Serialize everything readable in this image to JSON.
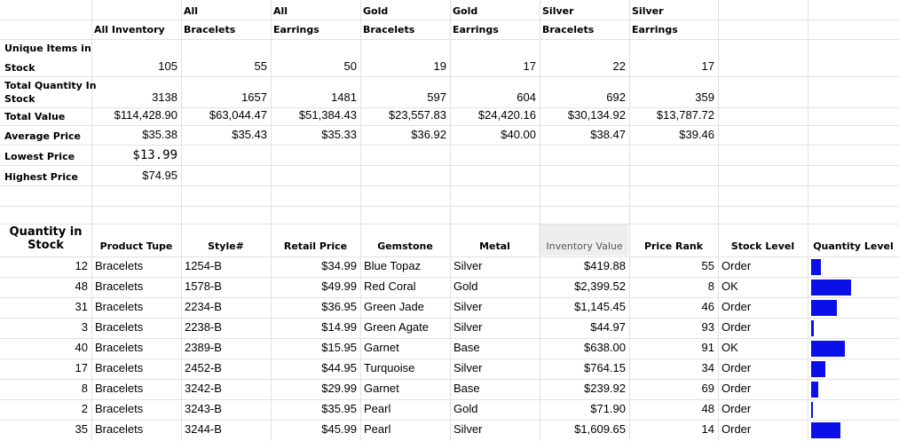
{
  "summary": {
    "headers": [
      {
        "line1": "",
        "line2": "All Inventory"
      },
      {
        "line1": "All",
        "line2": "Bracelets"
      },
      {
        "line1": "All",
        "line2": "Earrings"
      },
      {
        "line1": "Gold",
        "line2": "Bracelets"
      },
      {
        "line1": "Gold",
        "line2": "Earrings"
      },
      {
        "line1": "Silver",
        "line2": "Bracelets"
      },
      {
        "line1": "Silver",
        "line2": "Earrings"
      }
    ],
    "rows": [
      {
        "label_line1": "Unique Items in",
        "label_line2": "Stock",
        "values": [
          "105",
          "55",
          "50",
          "19",
          "17",
          "22",
          "17"
        ]
      },
      {
        "label_line1": "Total Quantity In",
        "label_line2": "Stock",
        "values": [
          "3138",
          "1657",
          "1481",
          "597",
          "604",
          "692",
          "359"
        ]
      },
      {
        "label_line1": "Total Value",
        "label_line2": "",
        "values": [
          "$114,428.90",
          "$63,044.47",
          "$51,384.43",
          "$23,557.83",
          "$24,420.16",
          "$30,134.92",
          "$13,787.72"
        ]
      },
      {
        "label_line1": "Average Price",
        "label_line2": "",
        "values": [
          "$35.38",
          "$35.43",
          "$35.33",
          "$36.92",
          "$40.00",
          "$38.47",
          "$39.46"
        ]
      },
      {
        "label_line1": "Lowest Price",
        "label_line2": "",
        "values": [
          "$13.99"
        ]
      },
      {
        "label_line1": "Highest Price",
        "label_line2": "",
        "values": [
          "$74.95"
        ]
      }
    ]
  },
  "table": {
    "headers": {
      "quantity_line1": "Quantity in",
      "quantity_line2": "Stock",
      "product_type": "Product Tupe",
      "style": "Style#",
      "retail_price": "Retail Price",
      "gemstone": "Gemstone",
      "metal": "Metal",
      "inventory_value": "Inventory Value",
      "price_rank": "Price Rank",
      "stock_level": "Stock Level",
      "quantity_level": "Quantity Level"
    },
    "bar_color": "#0b10e8",
    "selected_header_color": "#eeeeee",
    "rows": [
      {
        "qty": "12",
        "type": "Bracelets",
        "style": "1254-B",
        "price": "$34.99",
        "gem": "Blue Topaz",
        "metal": "Silver",
        "value": "$419.88",
        "rank": "55",
        "stock": "Order",
        "level": 12
      },
      {
        "qty": "48",
        "type": "Bracelets",
        "style": "1578-B",
        "price": "$49.99",
        "gem": "Red Coral",
        "metal": "Gold",
        "value": "$2,399.52",
        "rank": "8",
        "stock": "OK",
        "level": 48
      },
      {
        "qty": "31",
        "type": "Bracelets",
        "style": "2234-B",
        "price": "$36.95",
        "gem": "Green Jade",
        "metal": "Silver",
        "value": "$1,145.45",
        "rank": "46",
        "stock": "Order",
        "level": 31
      },
      {
        "qty": "3",
        "type": "Bracelets",
        "style": "2238-B",
        "price": "$14.99",
        "gem": "Green Agate",
        "metal": "Silver",
        "value": "$44.97",
        "rank": "93",
        "stock": "Order",
        "level": 3
      },
      {
        "qty": "40",
        "type": "Bracelets",
        "style": "2389-B",
        "price": "$15.95",
        "gem": "Garnet",
        "metal": "Base",
        "value": "$638.00",
        "rank": "91",
        "stock": "OK",
        "level": 40
      },
      {
        "qty": "17",
        "type": "Bracelets",
        "style": "2452-B",
        "price": "$44.95",
        "gem": "Turquoise",
        "metal": "Silver",
        "value": "$764.15",
        "rank": "34",
        "stock": "Order",
        "level": 17
      },
      {
        "qty": "8",
        "type": "Bracelets",
        "style": "3242-B",
        "price": "$29.99",
        "gem": "Garnet",
        "metal": "Base",
        "value": "$239.92",
        "rank": "69",
        "stock": "Order",
        "level": 8
      },
      {
        "qty": "2",
        "type": "Bracelets",
        "style": "3243-B",
        "price": "$35.95",
        "gem": "Pearl",
        "metal": "Gold",
        "value": "$71.90",
        "rank": "48",
        "stock": "Order",
        "level": 2
      },
      {
        "qty": "35",
        "type": "Bracelets",
        "style": "3244-B",
        "price": "$45.99",
        "gem": "Pearl",
        "metal": "Silver",
        "value": "$1,609.65",
        "rank": "14",
        "stock": "Order",
        "level": 35
      }
    ]
  }
}
